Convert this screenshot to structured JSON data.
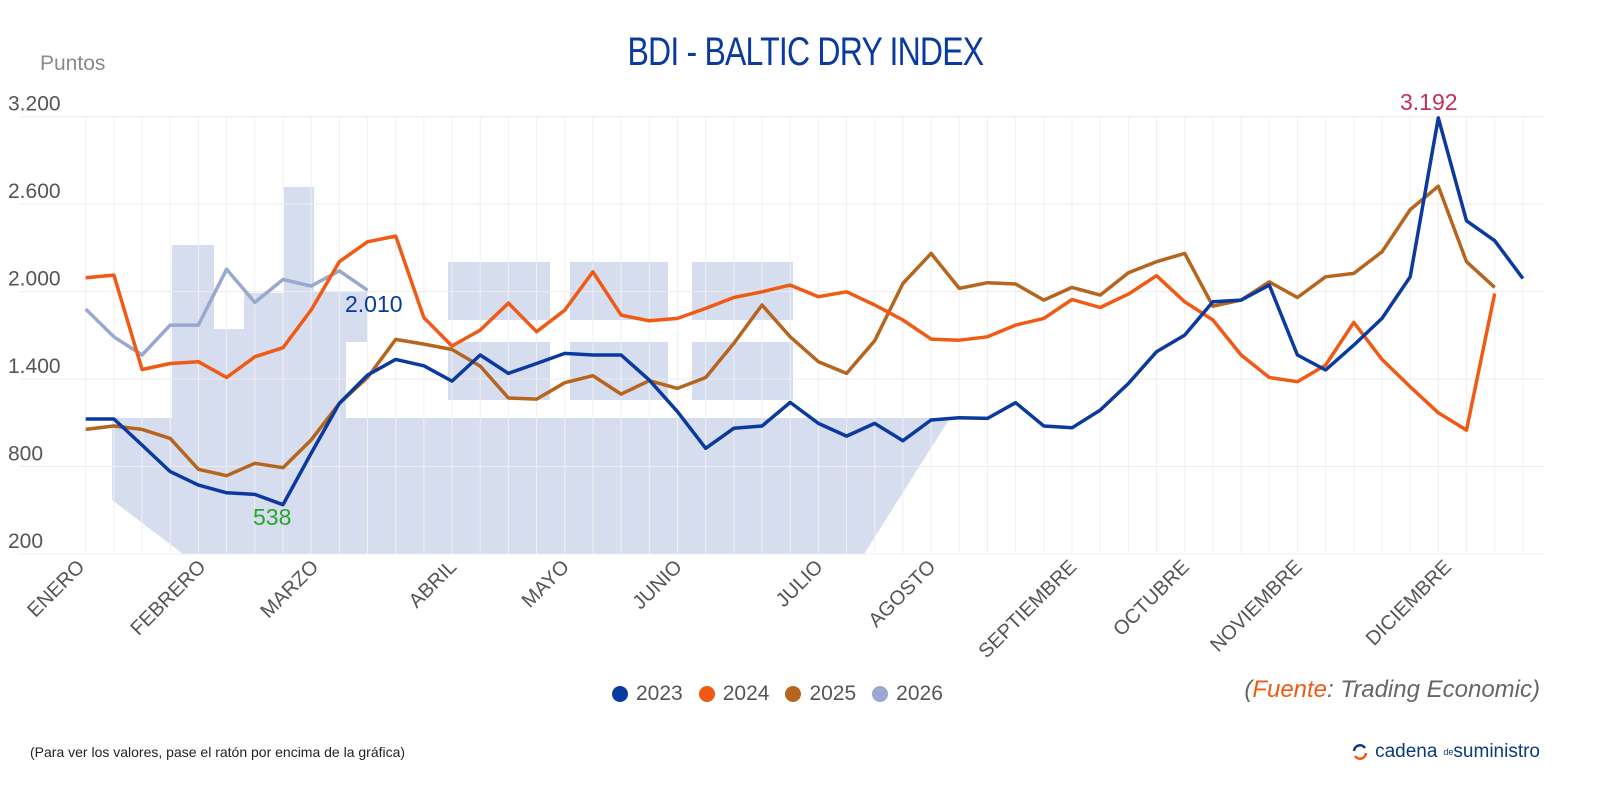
{
  "chart_data": {
    "type": "line",
    "title": "BDI - BALTIC DRY INDEX",
    "ylabel": "Puntos",
    "xlabel": "",
    "ylim": [
      200,
      3200
    ],
    "yticks": [
      "3.200",
      "2.600",
      "2.000",
      "1.400",
      "800",
      "200"
    ],
    "ytick_values": [
      3200,
      2600,
      2000,
      1400,
      800,
      200
    ],
    "x_tick_labels": [
      "ENERO",
      "FEBRERO",
      "MARZO",
      "ABRIL",
      "MAYO",
      "JUNIO",
      "JULIO",
      "AGOSTO",
      "SEPTIEMBRE",
      "OCTUBRE",
      "NOVIEMBRE",
      "DICIEMBRE"
    ],
    "grid": true,
    "legend_position": "bottom",
    "x_unit": "weekly observations",
    "series": [
      {
        "name": "2023",
        "color": "#0b3a9e",
        "values": [
          1126,
          1126,
          947,
          765,
          673,
          620,
          609,
          538,
          890,
          1233,
          1427,
          1535,
          1491,
          1386,
          1565,
          1439,
          1507,
          1576,
          1565,
          1565,
          1393,
          1176,
          925,
          1062,
          1078,
          1240,
          1096,
          1009,
          1096,
          977,
          1119,
          1135,
          1130,
          1238,
          1078,
          1066,
          1187,
          1370,
          1587,
          1702,
          1930,
          1942,
          2045,
          1565,
          1462,
          1633,
          1816,
          2102,
          3192,
          2486,
          2349,
          2090
        ]
      },
      {
        "name": "2024",
        "color": "#f05a14",
        "values": [
          2095,
          2113,
          1466,
          1507,
          1519,
          1411,
          1553,
          1615,
          1873,
          2205,
          2342,
          2381,
          1821,
          1627,
          1736,
          1921,
          1725,
          1873,
          2136,
          1839,
          1800,
          1816,
          1885,
          1960,
          1999,
          2045,
          1965,
          1999,
          1908,
          1805,
          1674,
          1667,
          1690,
          1770,
          1816,
          1946,
          1891,
          1983,
          2109,
          1930,
          1805,
          1565,
          1411,
          1382,
          1496,
          1789,
          1535,
          1347,
          1169,
          1050,
          1987
        ]
      },
      {
        "name": "2025",
        "color": "#b5651d",
        "values": [
          1055,
          1078,
          1055,
          993,
          781,
          737,
          822,
          792,
          982,
          1233,
          1411,
          1672,
          1640,
          1603,
          1489,
          1270,
          1263,
          1375,
          1423,
          1297,
          1389,
          1336,
          1411,
          1645,
          1908,
          1690,
          1519,
          1439,
          1663,
          2056,
          2262,
          2022,
          2061,
          2052,
          1942,
          2029,
          1976,
          2129,
          2205,
          2262,
          1900,
          1942,
          2067,
          1960,
          2102,
          2125,
          2273,
          2563,
          2723,
          2205,
          2029
        ]
      },
      {
        "name": "2026",
        "color": "#9aa8d0",
        "values": [
          1880,
          1690,
          1565,
          1770,
          1770,
          2154,
          1926,
          2083,
          2038,
          2143,
          2010
        ]
      }
    ],
    "annotations": [
      {
        "text": "3.192",
        "series": "2023",
        "color": "#c2305a"
      },
      {
        "text": "2.010",
        "series": "2026",
        "color": "#0b3a9e"
      },
      {
        "text": "538",
        "series": "2023",
        "color": "#2aa52a"
      }
    ]
  },
  "source": {
    "open": "(",
    "label": "Fuente",
    "text": ": Trading Economic)"
  },
  "note": "(Para ver los valores, pase el ratón por encima de la gráfica)",
  "logo": {
    "main": "cadena",
    "de": "de",
    "end": "suministro"
  },
  "colors": {
    "background_ship": "#d5ddef",
    "grid": "#eeeeee"
  }
}
